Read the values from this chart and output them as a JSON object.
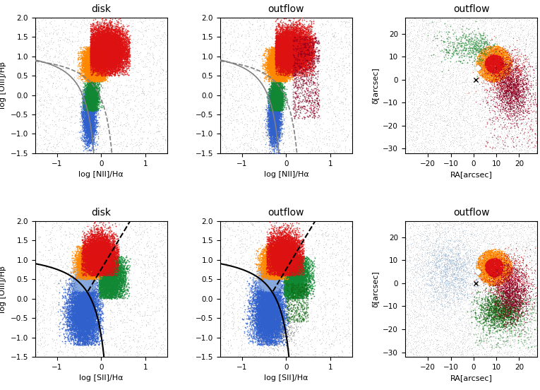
{
  "title_disk": "disk",
  "title_outflow": "outflow",
  "xlabel_NII": "log [NII]/Hα",
  "xlabel_SII": "log [SII]/Hα",
  "ylabel_OIII": "log [OIII]/Hβ",
  "xlabel_RA": "RA[arcsec]",
  "ylabel_dec": "δ[arcsec]",
  "fig_width": 7.65,
  "fig_height": 5.52,
  "colors": {
    "blue": "#3060cc",
    "light_blue": "#6699cc",
    "green": "#118833",
    "orange": "#ff8800",
    "red": "#dd1111",
    "dark_red": "#880022",
    "yellow": "#ffcc00",
    "gray_bg": "#aaaaaa",
    "gray_dark": "#666666"
  }
}
